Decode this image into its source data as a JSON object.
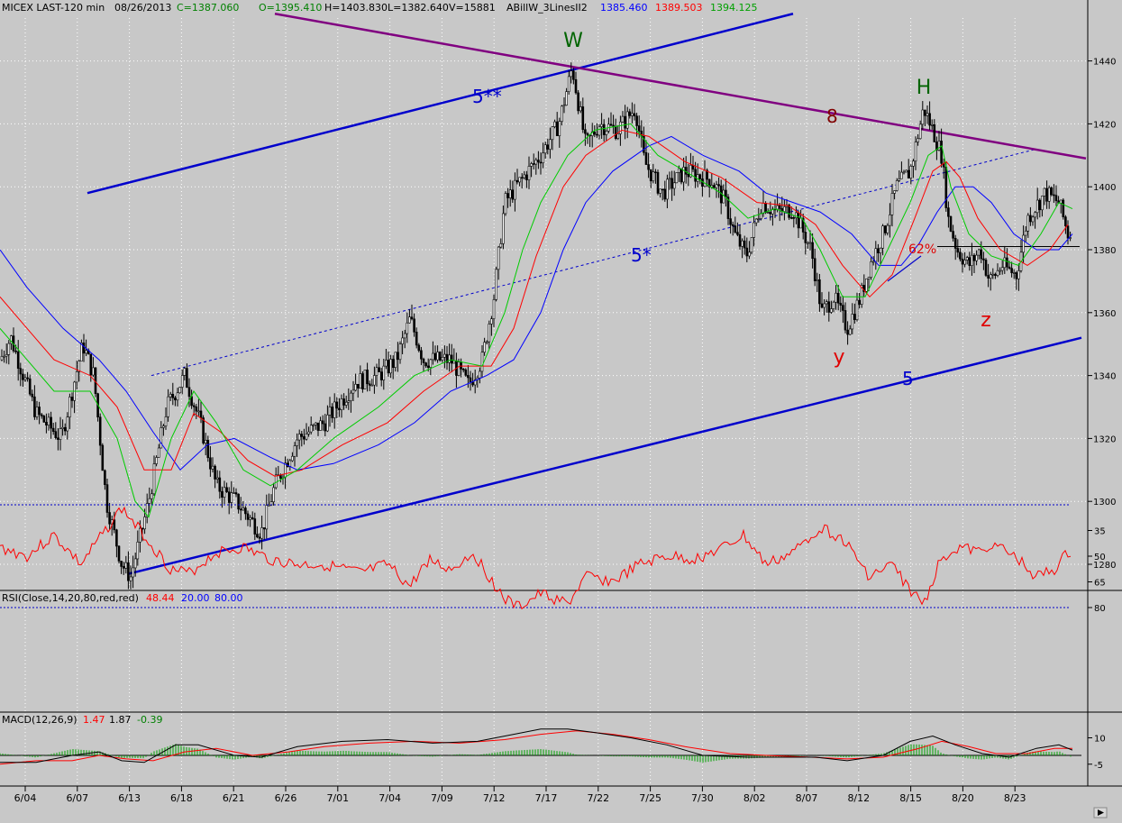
{
  "header": {
    "symbol": "MICEX LAST-120 min",
    "date": "08/26/2013",
    "close": "C=1387.060",
    "open": "O=1395.410",
    "high": "H=1403.830",
    "low": "L=1382.640",
    "volume": "V=15881",
    "indicator": "ABillW_3LinesII2",
    "ind_blue": "1385.460",
    "ind_red": "1389.503",
    "ind_green": "1394.125"
  },
  "rsi_panel": {
    "label": "RSI(Close,14,20,80,red,red)",
    "value": "48.44",
    "low": "20.00",
    "high": "80.00",
    "axis": [
      "80",
      "65",
      "50",
      "35"
    ]
  },
  "macd_panel": {
    "label": "MACD(12,26,9)",
    "v1": "1.47",
    "v2": "1.87",
    "v3": "-0.39",
    "axis": [
      "10",
      "-5"
    ]
  },
  "annotations": {
    "W": "W",
    "H": "H",
    "y": "y",
    "z": "z",
    "wave_5ss": "5**",
    "wave_5s": "5*",
    "wave_5": "5",
    "wave_8": "8",
    "pct": "62%"
  },
  "colors": {
    "background": "#c8c8c8",
    "candle": "#000000",
    "ma_green": "#00cc00",
    "ma_red": "#ff0000",
    "ma_blue": "#0000ff",
    "channel": "#0000cc",
    "resistance": "#800080",
    "label_green": "#006400",
    "label_red": "#e00000"
  },
  "chart_data": {
    "type": "candlestick",
    "title": "MICEX LAST-120 min",
    "ylim": [
      1270,
      1455
    ],
    "y_ticks": [
      1280,
      1300,
      1320,
      1340,
      1360,
      1380,
      1400,
      1420,
      1440
    ],
    "x_ticks": [
      "6/04",
      "6/07",
      "6/13",
      "6/18",
      "6/21",
      "6/26",
      "7/01",
      "7/04",
      "7/09",
      "7/12",
      "7/17",
      "7/22",
      "7/25",
      "7/30",
      "8/02",
      "8/07",
      "8/12",
      "8/15",
      "8/20",
      "8/23"
    ],
    "price_path": [
      [
        0,
        1345
      ],
      [
        12,
        1352
      ],
      [
        40,
        1328
      ],
      [
        68,
        1320
      ],
      [
        92,
        1350
      ],
      [
        104,
        1340
      ],
      [
        118,
        1300
      ],
      [
        135,
        1280
      ],
      [
        145,
        1276
      ],
      [
        165,
        1300
      ],
      [
        185,
        1330
      ],
      [
        205,
        1340
      ],
      [
        222,
        1325
      ],
      [
        240,
        1305
      ],
      [
        262,
        1300
      ],
      [
        290,
        1290
      ],
      [
        305,
        1305
      ],
      [
        330,
        1320
      ],
      [
        360,
        1325
      ],
      [
        395,
        1338
      ],
      [
        420,
        1340
      ],
      [
        440,
        1345
      ],
      [
        455,
        1358
      ],
      [
        470,
        1345
      ],
      [
        500,
        1345
      ],
      [
        520,
        1337
      ],
      [
        535,
        1345
      ],
      [
        548,
        1365
      ],
      [
        560,
        1395
      ],
      [
        578,
        1402
      ],
      [
        600,
        1410
      ],
      [
        620,
        1420
      ],
      [
        635,
        1438
      ],
      [
        650,
        1413
      ],
      [
        665,
        1420
      ],
      [
        685,
        1418
      ],
      [
        705,
        1425
      ],
      [
        715,
        1408
      ],
      [
        735,
        1398
      ],
      [
        760,
        1405
      ],
      [
        790,
        1402
      ],
      [
        805,
        1395
      ],
      [
        815,
        1385
      ],
      [
        828,
        1378
      ],
      [
        845,
        1395
      ],
      [
        862,
        1392
      ],
      [
        880,
        1393
      ],
      [
        900,
        1380
      ],
      [
        912,
        1360
      ],
      [
        925,
        1365
      ],
      [
        940,
        1355
      ],
      [
        955,
        1365
      ],
      [
        965,
        1375
      ],
      [
        980,
        1385
      ],
      [
        995,
        1400
      ],
      [
        1010,
        1405
      ],
      [
        1025,
        1425
      ],
      [
        1035,
        1418
      ],
      [
        1045,
        1410
      ],
      [
        1052,
        1390
      ],
      [
        1062,
        1380
      ],
      [
        1075,
        1375
      ],
      [
        1088,
        1380
      ],
      [
        1098,
        1370
      ],
      [
        1112,
        1375
      ],
      [
        1128,
        1372
      ],
      [
        1140,
        1390
      ],
      [
        1160,
        1398
      ],
      [
        1175,
        1395
      ],
      [
        1185,
        1385
      ]
    ],
    "ma_green": [
      [
        0,
        1355
      ],
      [
        30,
        1345
      ],
      [
        60,
        1335
      ],
      [
        100,
        1335
      ],
      [
        130,
        1320
      ],
      [
        150,
        1300
      ],
      [
        165,
        1295
      ],
      [
        190,
        1320
      ],
      [
        215,
        1335
      ],
      [
        240,
        1325
      ],
      [
        270,
        1310
      ],
      [
        300,
        1305
      ],
      [
        330,
        1310
      ],
      [
        370,
        1320
      ],
      [
        420,
        1330
      ],
      [
        460,
        1340
      ],
      [
        500,
        1345
      ],
      [
        535,
        1343
      ],
      [
        560,
        1360
      ],
      [
        580,
        1380
      ],
      [
        600,
        1395
      ],
      [
        630,
        1410
      ],
      [
        660,
        1418
      ],
      [
        700,
        1420
      ],
      [
        730,
        1410
      ],
      [
        760,
        1405
      ],
      [
        800,
        1398
      ],
      [
        830,
        1390
      ],
      [
        860,
        1393
      ],
      [
        890,
        1390
      ],
      [
        910,
        1380
      ],
      [
        935,
        1365
      ],
      [
        960,
        1365
      ],
      [
        985,
        1380
      ],
      [
        1010,
        1395
      ],
      [
        1030,
        1410
      ],
      [
        1045,
        1413
      ],
      [
        1055,
        1400
      ],
      [
        1075,
        1385
      ],
      [
        1100,
        1378
      ],
      [
        1130,
        1375
      ],
      [
        1155,
        1385
      ],
      [
        1175,
        1395
      ],
      [
        1190,
        1393
      ]
    ],
    "ma_red": [
      [
        0,
        1365
      ],
      [
        30,
        1355
      ],
      [
        60,
        1345
      ],
      [
        100,
        1340
      ],
      [
        130,
        1330
      ],
      [
        160,
        1310
      ],
      [
        190,
        1310
      ],
      [
        215,
        1328
      ],
      [
        245,
        1322
      ],
      [
        275,
        1313
      ],
      [
        305,
        1308
      ],
      [
        335,
        1310
      ],
      [
        380,
        1318
      ],
      [
        430,
        1325
      ],
      [
        470,
        1335
      ],
      [
        510,
        1343
      ],
      [
        545,
        1343
      ],
      [
        570,
        1355
      ],
      [
        595,
        1378
      ],
      [
        625,
        1400
      ],
      [
        650,
        1410
      ],
      [
        690,
        1418
      ],
      [
        720,
        1416
      ],
      [
        760,
        1408
      ],
      [
        800,
        1403
      ],
      [
        840,
        1395
      ],
      [
        875,
        1394
      ],
      [
        905,
        1388
      ],
      [
        935,
        1375
      ],
      [
        965,
        1365
      ],
      [
        990,
        1372
      ],
      [
        1015,
        1390
      ],
      [
        1035,
        1405
      ],
      [
        1050,
        1408
      ],
      [
        1065,
        1403
      ],
      [
        1085,
        1390
      ],
      [
        1110,
        1380
      ],
      [
        1140,
        1375
      ],
      [
        1165,
        1380
      ],
      [
        1185,
        1388
      ]
    ],
    "ma_blue": [
      [
        0,
        1380
      ],
      [
        30,
        1368
      ],
      [
        70,
        1355
      ],
      [
        110,
        1345
      ],
      [
        140,
        1335
      ],
      [
        170,
        1322
      ],
      [
        200,
        1310
      ],
      [
        230,
        1318
      ],
      [
        260,
        1320
      ],
      [
        300,
        1314
      ],
      [
        330,
        1310
      ],
      [
        370,
        1312
      ],
      [
        420,
        1318
      ],
      [
        460,
        1325
      ],
      [
        500,
        1335
      ],
      [
        540,
        1340
      ],
      [
        570,
        1345
      ],
      [
        600,
        1360
      ],
      [
        625,
        1380
      ],
      [
        650,
        1395
      ],
      [
        680,
        1405
      ],
      [
        720,
        1413
      ],
      [
        745,
        1416
      ],
      [
        780,
        1410
      ],
      [
        820,
        1405
      ],
      [
        850,
        1398
      ],
      [
        880,
        1395
      ],
      [
        910,
        1392
      ],
      [
        945,
        1385
      ],
      [
        975,
        1375
      ],
      [
        1000,
        1375
      ],
      [
        1020,
        1382
      ],
      [
        1040,
        1392
      ],
      [
        1060,
        1400
      ],
      [
        1080,
        1400
      ],
      [
        1100,
        1395
      ],
      [
        1125,
        1385
      ],
      [
        1150,
        1380
      ],
      [
        1175,
        1380
      ],
      [
        1190,
        1385
      ]
    ],
    "rsi": {
      "values": [
        [
          0,
          45
        ],
        [
          30,
          50
        ],
        [
          60,
          38
        ],
        [
          90,
          55
        ],
        [
          110,
          40
        ],
        [
          135,
          22
        ],
        [
          160,
          38
        ],
        [
          190,
          58
        ],
        [
          210,
          60
        ],
        [
          240,
          48
        ],
        [
          270,
          45
        ],
        [
          300,
          52
        ],
        [
          330,
          55
        ],
        [
          360,
          55
        ],
        [
          400,
          60
        ],
        [
          430,
          55
        ],
        [
          455,
          68
        ],
        [
          475,
          52
        ],
        [
          500,
          58
        ],
        [
          525,
          48
        ],
        [
          540,
          60
        ],
        [
          560,
          75
        ],
        [
          575,
          80
        ],
        [
          600,
          72
        ],
        [
          630,
          78
        ],
        [
          650,
          62
        ],
        [
          680,
          65
        ],
        [
          710,
          55
        ],
        [
          740,
          50
        ],
        [
          770,
          52
        ],
        [
          800,
          46
        ],
        [
          825,
          38
        ],
        [
          850,
          55
        ],
        [
          880,
          48
        ],
        [
          910,
          33
        ],
        [
          935,
          40
        ],
        [
          965,
          62
        ],
        [
          990,
          55
        ],
        [
          1010,
          70
        ],
        [
          1025,
          78
        ],
        [
          1045,
          50
        ],
        [
          1065,
          45
        ],
        [
          1090,
          48
        ],
        [
          1100,
          42
        ],
        [
          1130,
          52
        ],
        [
          1150,
          62
        ],
        [
          1170,
          58
        ],
        [
          1185,
          48
        ]
      ],
      "ylim": [
        15,
        85
      ],
      "levels": [
        20,
        80
      ]
    },
    "macd": {
      "macd_line": [
        [
          0,
          -4
        ],
        [
          40,
          -4
        ],
        [
          80,
          0
        ],
        [
          110,
          2
        ],
        [
          135,
          -3
        ],
        [
          160,
          -4
        ],
        [
          195,
          6
        ],
        [
          220,
          6
        ],
        [
          260,
          0
        ],
        [
          290,
          -1
        ],
        [
          330,
          5
        ],
        [
          380,
          8
        ],
        [
          430,
          9
        ],
        [
          480,
          7
        ],
        [
          530,
          8
        ],
        [
          570,
          12
        ],
        [
          600,
          15
        ],
        [
          630,
          15
        ],
        [
          660,
          13
        ],
        [
          700,
          10
        ],
        [
          740,
          6
        ],
        [
          780,
          0
        ],
        [
          830,
          -1
        ],
        [
          870,
          -1
        ],
        [
          905,
          -1
        ],
        [
          940,
          -3
        ],
        [
          980,
          0
        ],
        [
          1010,
          8
        ],
        [
          1035,
          11
        ],
        [
          1060,
          6
        ],
        [
          1090,
          1
        ],
        [
          1120,
          -1
        ],
        [
          1150,
          4
        ],
        [
          1175,
          6
        ],
        [
          1190,
          3
        ]
      ],
      "signal_line": [
        [
          0,
          -5
        ],
        [
          40,
          -3
        ],
        [
          80,
          -3
        ],
        [
          110,
          0
        ],
        [
          140,
          -2
        ],
        [
          170,
          -3
        ],
        [
          205,
          2
        ],
        [
          240,
          4
        ],
        [
          280,
          0
        ],
        [
          320,
          2
        ],
        [
          360,
          5
        ],
        [
          410,
          7
        ],
        [
          460,
          8
        ],
        [
          510,
          7
        ],
        [
          560,
          9
        ],
        [
          600,
          12
        ],
        [
          640,
          14
        ],
        [
          680,
          12
        ],
        [
          720,
          9
        ],
        [
          760,
          5
        ],
        [
          810,
          1
        ],
        [
          850,
          0
        ],
        [
          900,
          -1
        ],
        [
          940,
          -2
        ],
        [
          980,
          -1
        ],
        [
          1020,
          4
        ],
        [
          1045,
          8
        ],
        [
          1075,
          5
        ],
        [
          1105,
          1
        ],
        [
          1140,
          1
        ],
        [
          1170,
          4
        ],
        [
          1190,
          4
        ]
      ],
      "ylim": [
        -12,
        20
      ]
    },
    "channel_lower": [
      [
        143,
        1277
      ],
      [
        1200,
        1352
      ]
    ],
    "channel_upper": [
      [
        97,
        1398
      ],
      [
        880,
        1455
      ]
    ],
    "channel_mid": [
      [
        168,
        1340
      ],
      [
        1150,
        1412
      ]
    ],
    "resistance": [
      [
        305,
        1455
      ],
      [
        1205,
        1409
      ]
    ]
  }
}
